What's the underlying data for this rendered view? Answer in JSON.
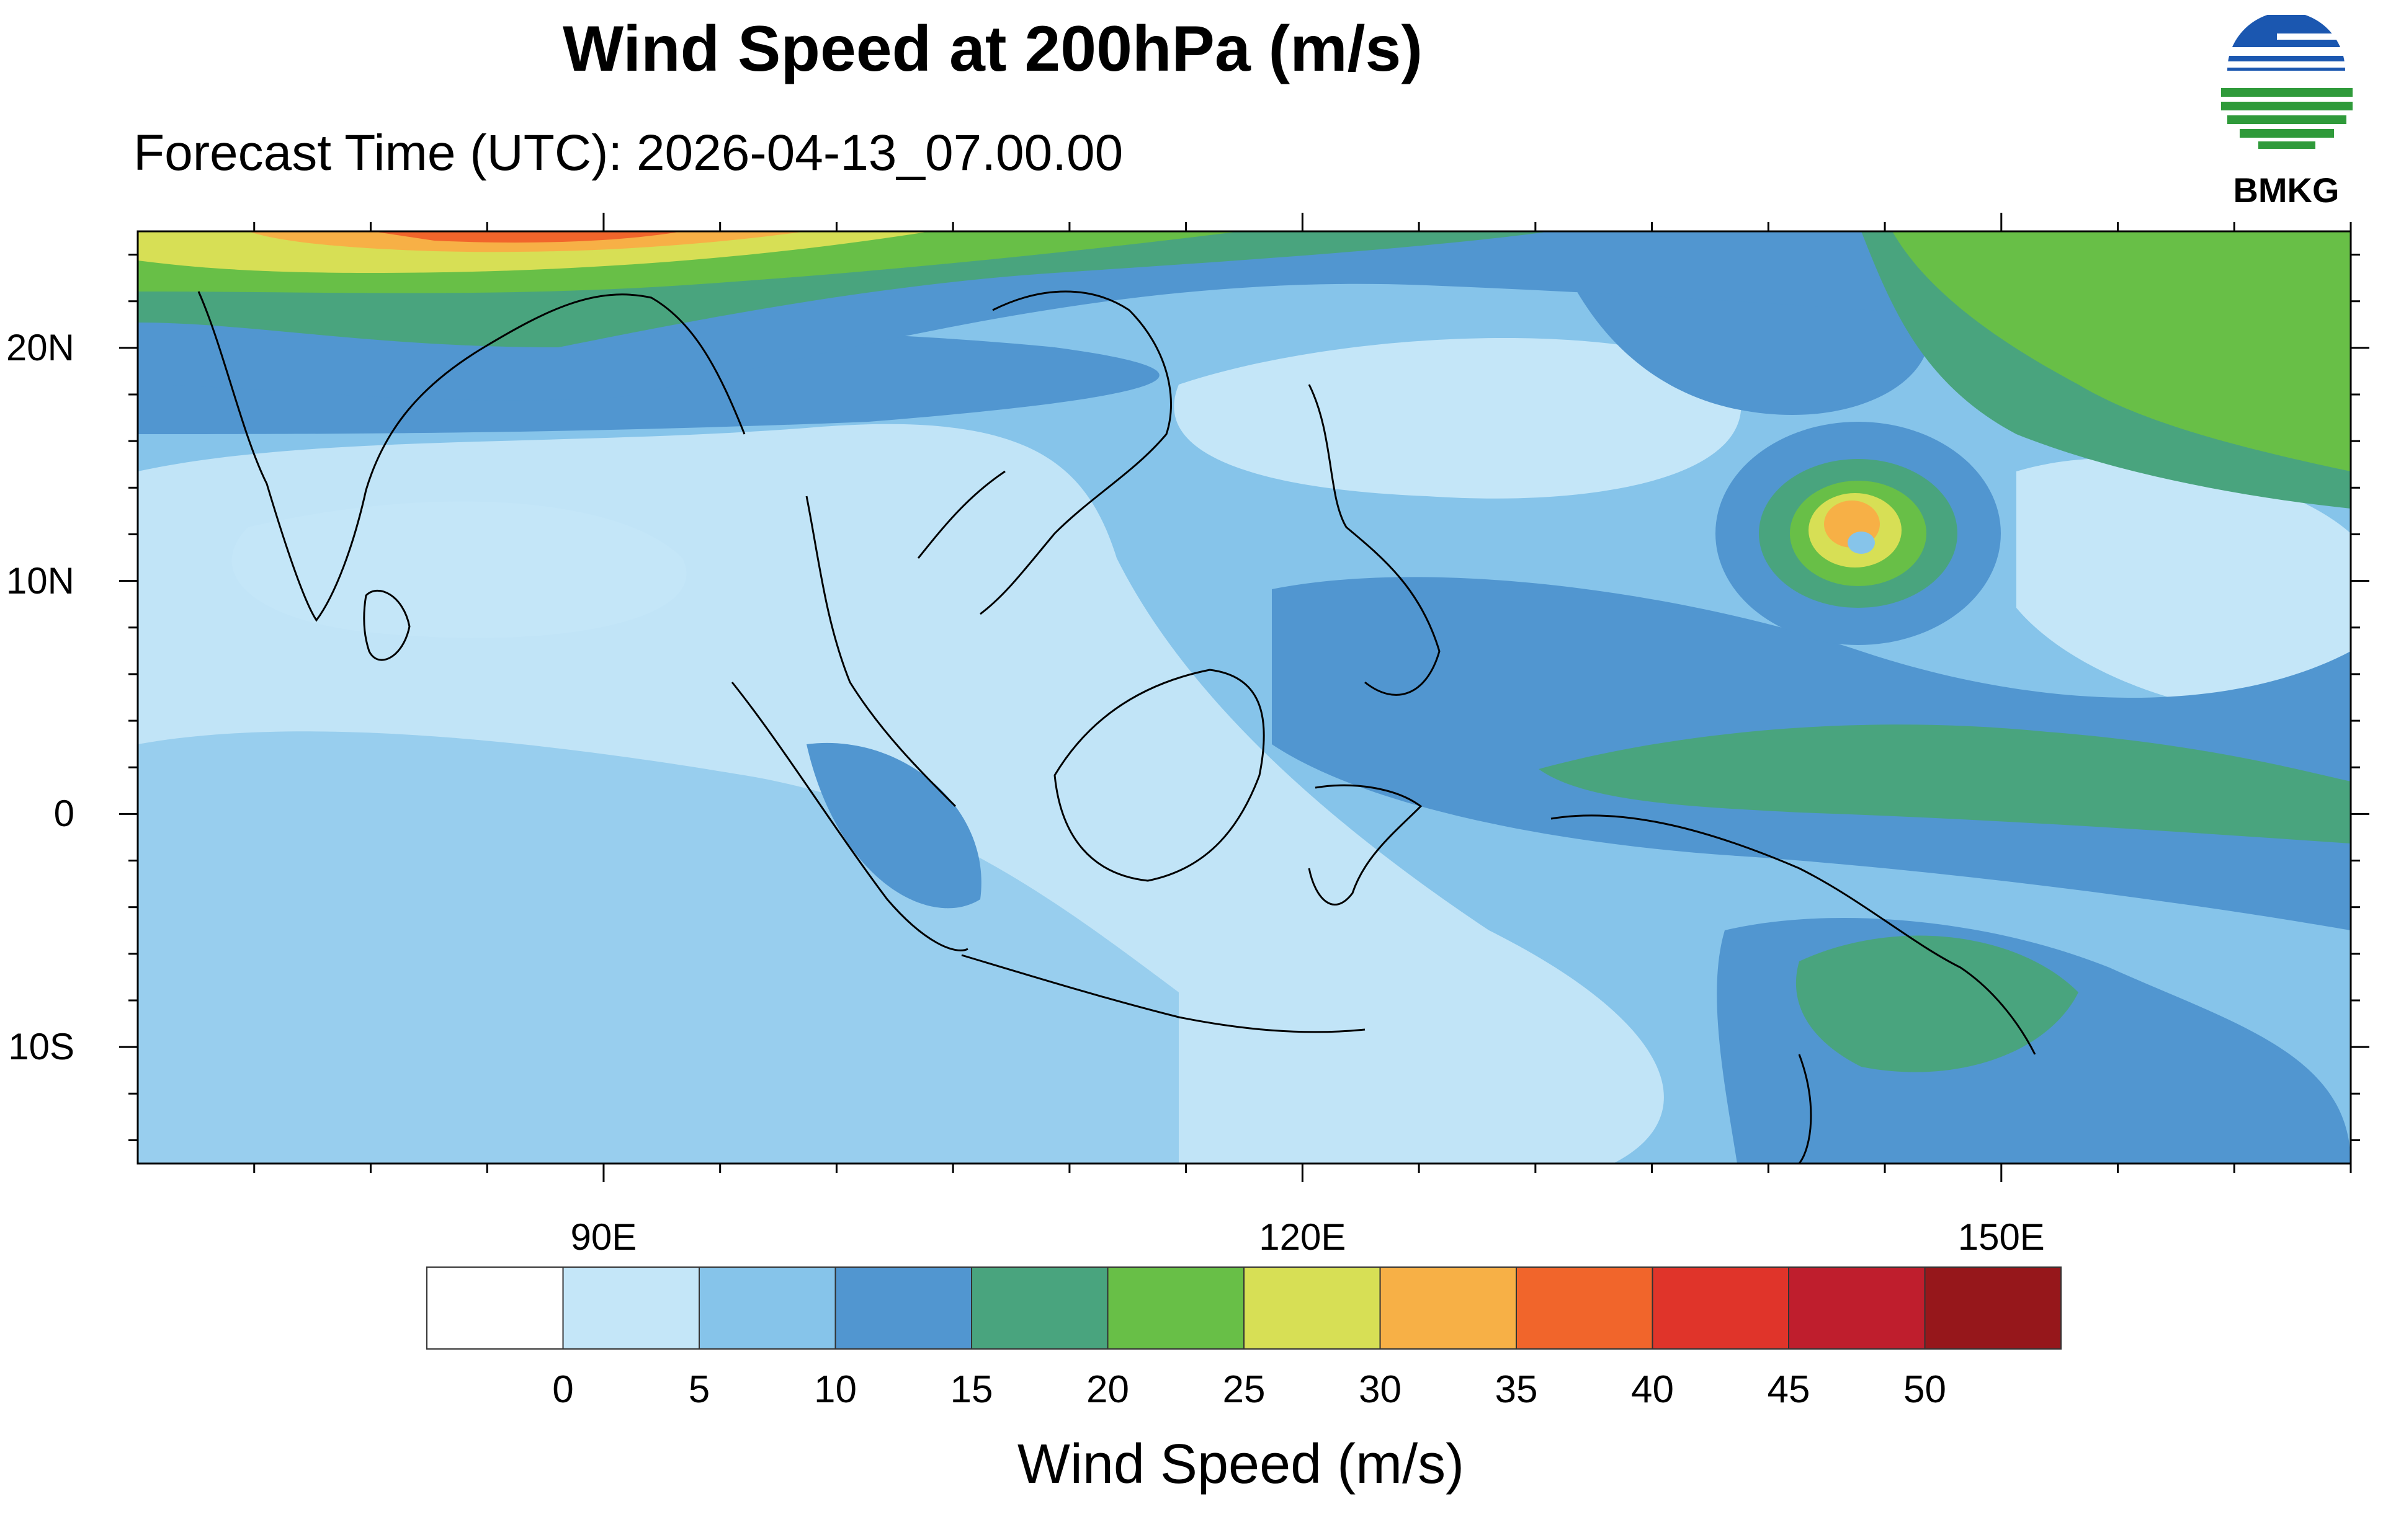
{
  "title": "Wind Speed at 200hPa (m/s)",
  "subtitle": "Forecast Time (UTC): 2026-04-13_07.00.00",
  "logo": {
    "text": "BMKG",
    "icon": "bmkg-logo"
  },
  "map": {
    "region": "Indian Ocean, Southeast Asia, Maritime Continent, Western Pacific",
    "lon_range": [
      70,
      165
    ],
    "lat_range": [
      -15,
      25
    ],
    "y_ticks": [
      {
        "lat": 20,
        "label": "20N"
      },
      {
        "lat": 10,
        "label": "10N"
      },
      {
        "lat": 0,
        "label": "0"
      },
      {
        "lat": -10,
        "label": "10S"
      }
    ],
    "x_ticks": [
      {
        "lon": 90,
        "label": "90E"
      },
      {
        "lon": 120,
        "label": "120E"
      },
      {
        "lon": 150,
        "label": "150E"
      }
    ],
    "features": {
      "jet_stream": "strong winds (25-40 m/s) along northern edge near 25N, 75E-105E",
      "tropical_cyclone": "compact wind maximum near 12N, 144E",
      "westerly_band": "15-20 m/s band from 3N-5N, 135E-165E"
    }
  },
  "colorbar": {
    "title": "Wind Speed (m/s)",
    "levels": [
      "0",
      "5",
      "10",
      "15",
      "20",
      "25",
      "30",
      "35",
      "40",
      "45",
      "50"
    ],
    "colors": [
      "#ffffff",
      "#c4e6f8",
      "#86c4ea",
      "#5196d0",
      "#49a47e",
      "#68bf47",
      "#d7df55",
      "#f7b046",
      "#f1652b",
      "#e0342a",
      "#bf1e2d",
      "#96171b"
    ]
  }
}
